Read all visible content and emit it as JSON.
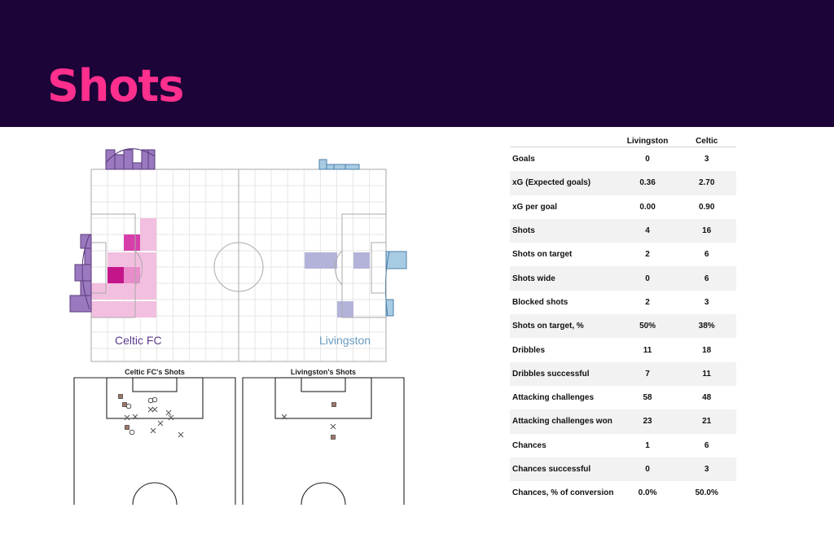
{
  "header": {
    "title": "Shots"
  },
  "heatmap": {
    "left_team_label": "Celtic FC",
    "right_team_label": "Livingston",
    "left_color": "#8a4fa8",
    "right_color": "#7aa7c7"
  },
  "shot_maps": [
    {
      "title": "Celtic FC's Shots"
    },
    {
      "title": "Livingston's Shots"
    }
  ],
  "stats": {
    "columns": [
      "Livingston",
      "Celtic"
    ],
    "rows": [
      {
        "label": "Goals",
        "livingston": "0",
        "celtic": "3"
      },
      {
        "label": "xG (Expected goals)",
        "livingston": "0.36",
        "celtic": "2.70"
      },
      {
        "label": "xG per goal",
        "livingston": "0.00",
        "celtic": "0.90"
      },
      {
        "label": "Shots",
        "livingston": "4",
        "celtic": "16"
      },
      {
        "label": "Shots on target",
        "livingston": "2",
        "celtic": "6"
      },
      {
        "label": "Shots wide",
        "livingston": "0",
        "celtic": "6"
      },
      {
        "label": "Blocked shots",
        "livingston": "2",
        "celtic": "3"
      },
      {
        "label": "Shots on target, %",
        "livingston": "50%",
        "celtic": "38%"
      },
      {
        "label": "Dribbles",
        "livingston": "11",
        "celtic": "18"
      },
      {
        "label": "Dribbles successful",
        "livingston": "7",
        "celtic": "11"
      },
      {
        "label": "Attacking challenges",
        "livingston": "58",
        "celtic": "48"
      },
      {
        "label": "Attacking challenges won",
        "livingston": "23",
        "celtic": "21"
      },
      {
        "label": "Chances",
        "livingston": "1",
        "celtic": "6"
      },
      {
        "label": "Chances successful",
        "livingston": "0",
        "celtic": "3"
      },
      {
        "label": "Chances, % of conversion",
        "livingston": "0.0%",
        "celtic": "50.0%"
      }
    ]
  }
}
